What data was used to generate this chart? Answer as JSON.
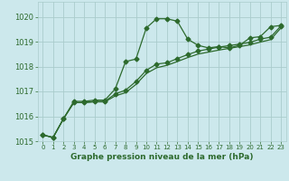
{
  "bg_color": "#cce8ec",
  "grid_color": "#aacccc",
  "line_color": "#2d6a2d",
  "ylim": [
    1015,
    1020.6
  ],
  "xlim": [
    -0.5,
    23.5
  ],
  "yticks": [
    1015,
    1016,
    1017,
    1018,
    1019,
    1020
  ],
  "xticks": [
    0,
    1,
    2,
    3,
    4,
    5,
    6,
    7,
    8,
    9,
    10,
    11,
    12,
    13,
    14,
    15,
    16,
    17,
    18,
    19,
    20,
    21,
    22,
    23
  ],
  "xlabel": "Graphe pression niveau de la mer (hPa)",
  "line1_x": [
    0,
    1,
    2,
    3,
    4,
    5,
    6,
    7,
    8,
    9,
    10,
    11,
    12,
    13,
    14,
    15,
    16,
    17,
    18,
    19,
    20,
    21,
    22,
    23
  ],
  "line1_y": [
    1015.25,
    1015.15,
    1015.9,
    1016.6,
    1016.6,
    1016.65,
    1016.65,
    1017.1,
    1018.2,
    1018.3,
    1019.55,
    1019.92,
    1019.92,
    1019.82,
    1019.1,
    1018.85,
    1018.75,
    1018.8,
    1018.75,
    1018.85,
    1019.15,
    1019.2,
    1019.6,
    1019.65
  ],
  "line2_x": [
    0,
    1,
    2,
    3,
    4,
    5,
    6,
    7,
    8,
    9,
    10,
    11,
    12,
    13,
    14,
    15,
    16,
    17,
    18,
    19,
    20,
    21,
    22,
    23
  ],
  "line2_y": [
    1015.25,
    1015.15,
    1015.9,
    1016.55,
    1016.55,
    1016.6,
    1016.6,
    1016.9,
    1017.05,
    1017.4,
    1017.85,
    1018.1,
    1018.15,
    1018.32,
    1018.48,
    1018.62,
    1018.7,
    1018.78,
    1018.84,
    1018.9,
    1018.97,
    1019.1,
    1019.18,
    1019.63
  ],
  "line3_x": [
    0,
    1,
    2,
    3,
    4,
    5,
    6,
    7,
    8,
    9,
    10,
    11,
    12,
    13,
    14,
    15,
    16,
    17,
    18,
    19,
    20,
    21,
    22,
    23
  ],
  "line3_y": [
    1015.25,
    1015.15,
    1015.9,
    1016.55,
    1016.55,
    1016.58,
    1016.58,
    1016.82,
    1016.95,
    1017.28,
    1017.72,
    1017.95,
    1018.05,
    1018.2,
    1018.36,
    1018.5,
    1018.58,
    1018.66,
    1018.73,
    1018.8,
    1018.87,
    1018.98,
    1019.08,
    1019.55
  ]
}
